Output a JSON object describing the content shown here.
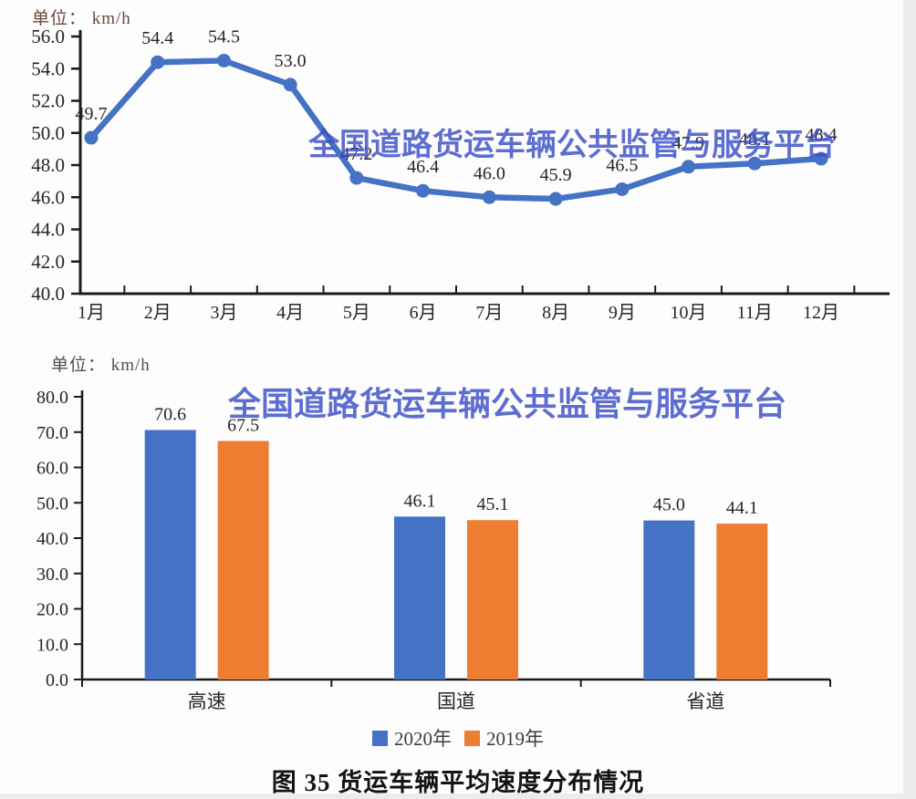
{
  "watermark": {
    "text": "全国道路货运车辆公共监管与服务平台",
    "color": "#3a4ec6"
  },
  "caption": "图 35 货运车辆平均速度分布情况",
  "colors": {
    "blue": "#4472C4",
    "orange": "#ED7D31",
    "axis": "#1a1a1a"
  },
  "chart_data": [
    {
      "type": "line",
      "unit_label": "单位： km/h",
      "categories": [
        "1月",
        "2月",
        "3月",
        "4月",
        "5月",
        "6月",
        "7月",
        "8月",
        "9月",
        "10月",
        "11月",
        "12月"
      ],
      "series": [
        {
          "color": "#4472C4",
          "values": [
            49.7,
            54.4,
            54.5,
            53.0,
            47.2,
            46.4,
            46.0,
            45.9,
            46.5,
            47.9,
            48.1,
            48.4
          ]
        }
      ],
      "ylim": [
        40.0,
        56.0
      ],
      "ytick_step": 2.0,
      "ytick_labels": [
        "40.0",
        "42.0",
        "44.0",
        "46.0",
        "48.0",
        "50.0",
        "52.0",
        "54.0",
        "56.0"
      ],
      "grid": false,
      "data_labels": true,
      "legend": false
    },
    {
      "type": "bar",
      "unit_label": "单位： km/h",
      "categories": [
        "高速",
        "国道",
        "省道"
      ],
      "series": [
        {
          "name": "2020年",
          "color": "#4472C4",
          "values": [
            70.6,
            46.1,
            45.0
          ]
        },
        {
          "name": "2019年",
          "color": "#ED7D31",
          "values": [
            67.5,
            45.1,
            44.1
          ]
        }
      ],
      "ylim": [
        0.0,
        80.0
      ],
      "ytick_step": 10.0,
      "ytick_labels": [
        "0.0",
        "10.0",
        "20.0",
        "30.0",
        "40.0",
        "50.0",
        "60.0",
        "70.0",
        "80.0"
      ],
      "grid": false,
      "data_labels": true,
      "legend_position": "bottom"
    }
  ]
}
